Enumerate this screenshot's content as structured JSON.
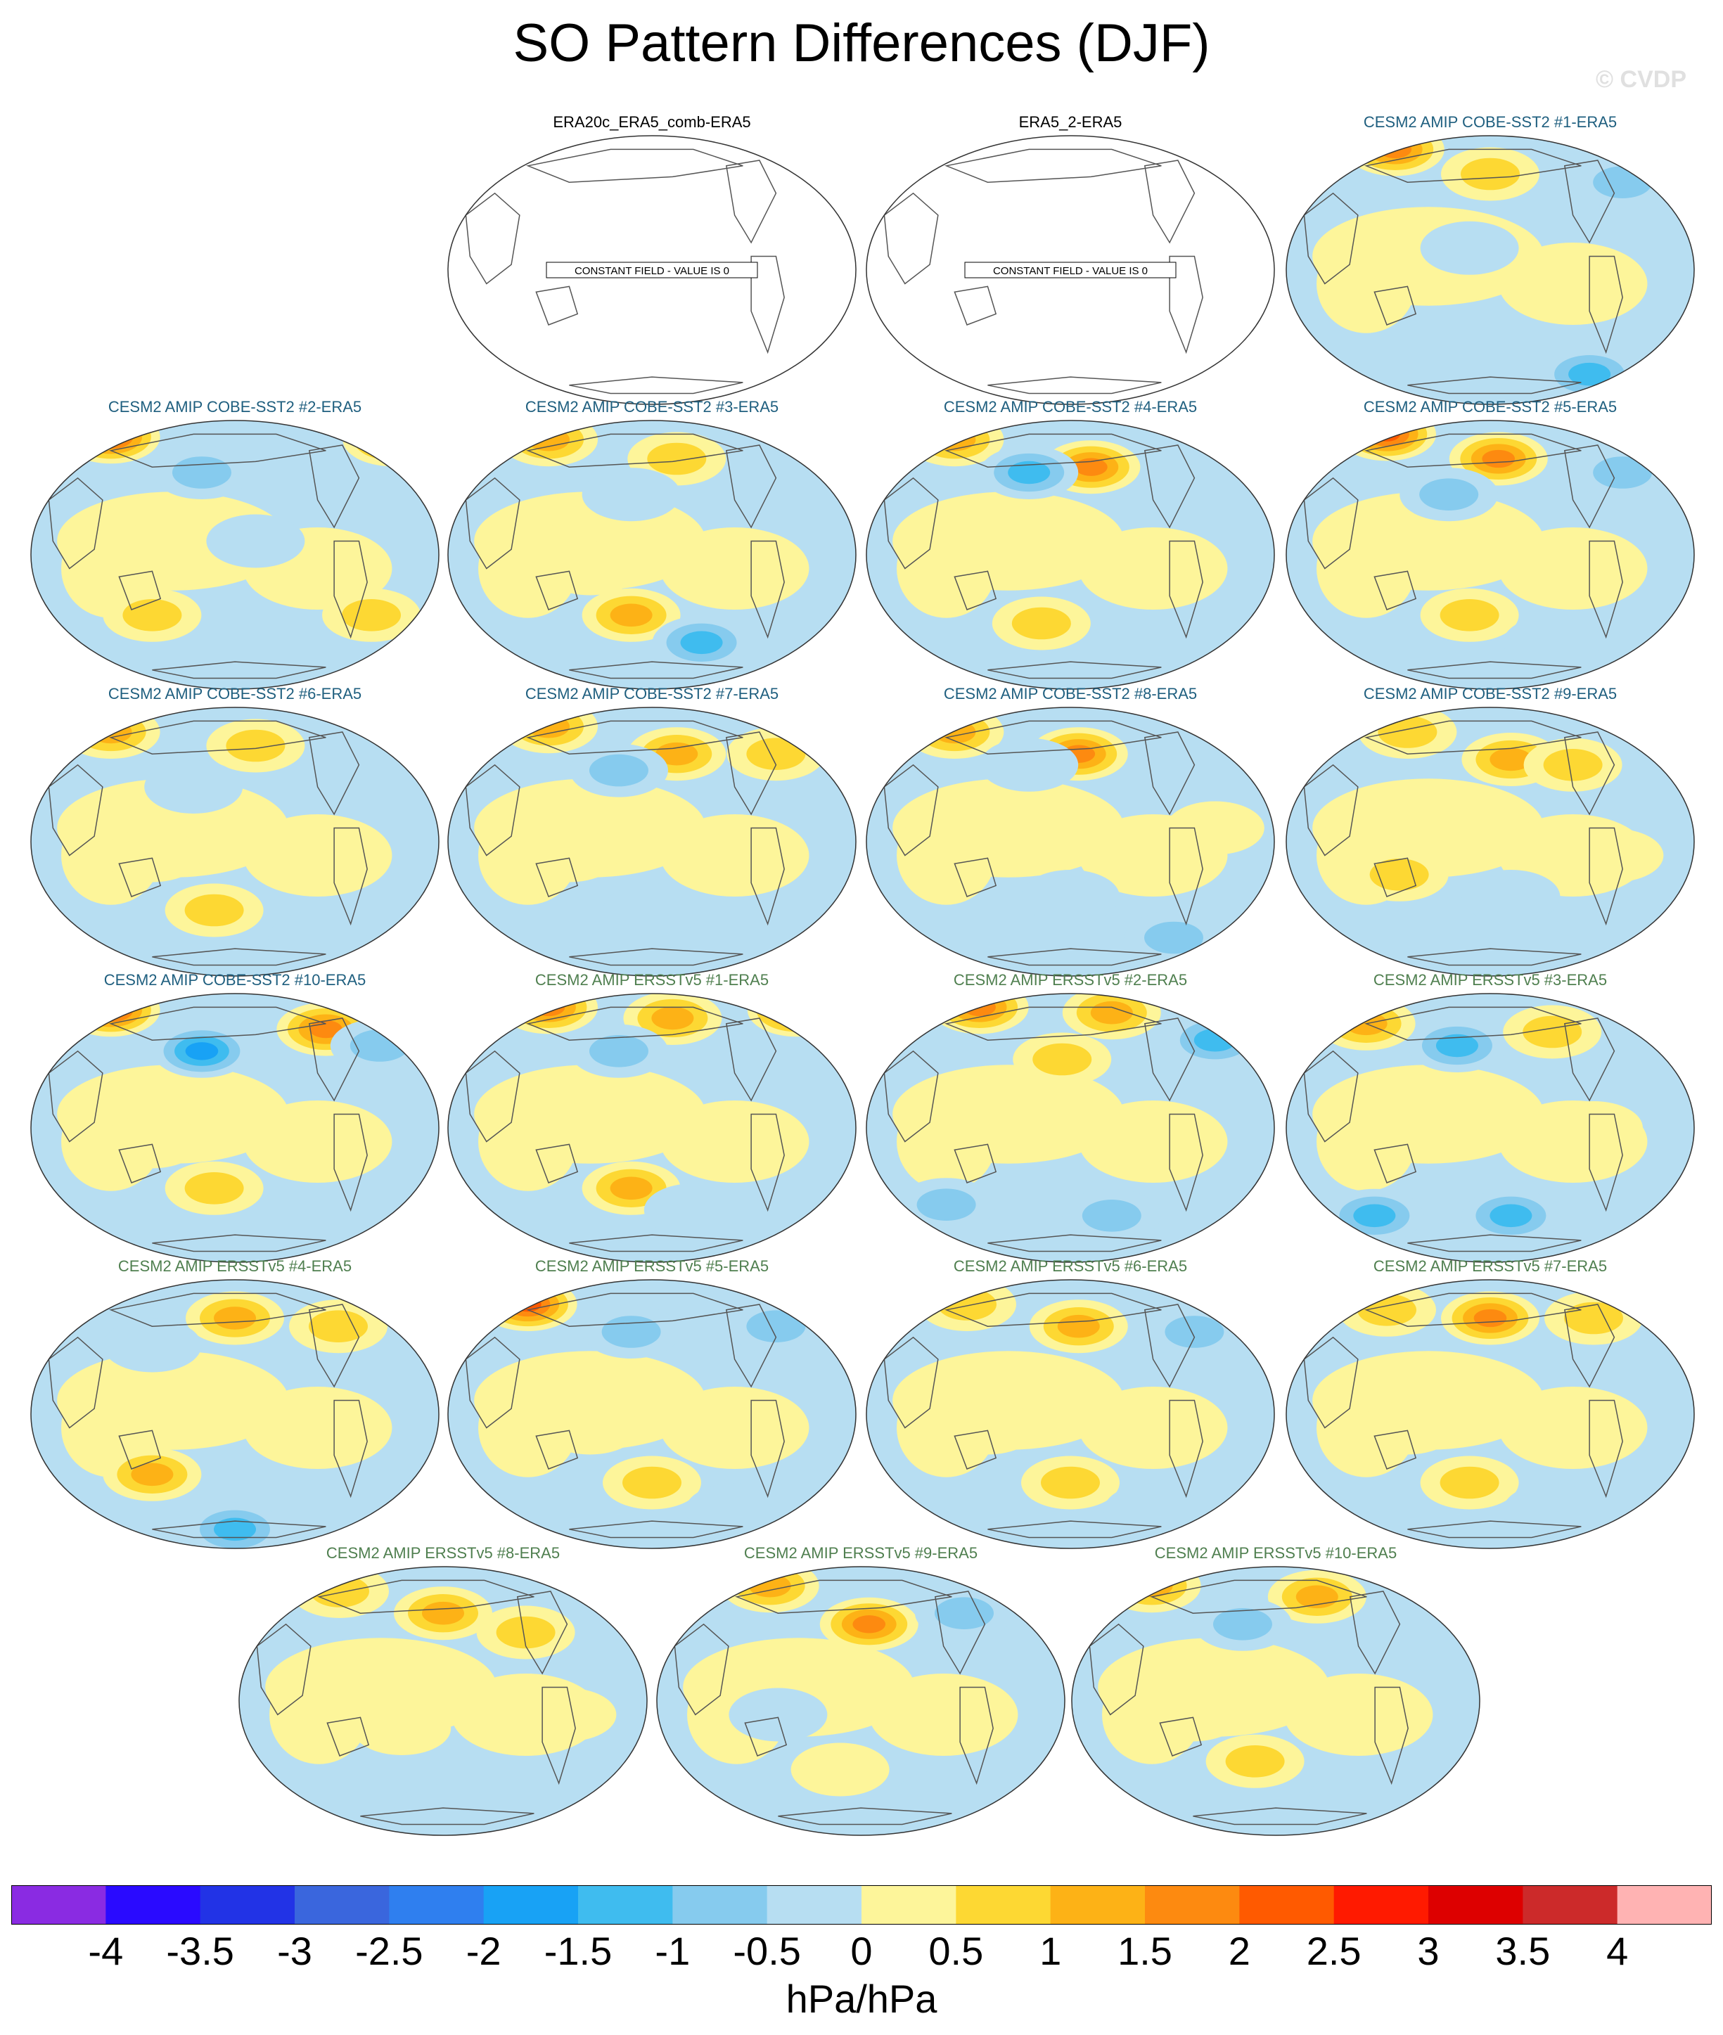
{
  "title": "SO Pattern Differences (DJF)",
  "watermark": "© CVDP",
  "colors": {
    "obs_title": "#000000",
    "cobe_title": "#1f5f7f",
    "ersst_title": "#4f7f4f",
    "ocean_base": "#b7def2",
    "land_line": "#555555"
  },
  "chart_data": {
    "type": "heatmap",
    "title": "SO Pattern Differences (DJF)",
    "units": "hPa/hPa",
    "colorbar": {
      "levels": [
        "-4",
        "-3.5",
        "-3",
        "-2.5",
        "-2",
        "-1.5",
        "-1",
        "-0.5",
        "0",
        "0.5",
        "1",
        "1.5",
        "2",
        "2.5",
        "3",
        "3.5",
        "4"
      ],
      "colors": [
        "#8a2be2",
        "#2a0aff",
        "#2233e6",
        "#3a66dd",
        "#2f7fef",
        "#18a2f5",
        "#3fbcef",
        "#86cbee",
        "#b7def2",
        "#fdf59a",
        "#fdd833",
        "#fdb216",
        "#fd8a10",
        "#ff5a00",
        "#ff1a00",
        "#dd0000",
        "#cc2a2a",
        "#ffb3b3"
      ]
    },
    "panels": [
      {
        "label": "ERA20c_ERA5_comb-ERA5",
        "group": "obs",
        "constant": true,
        "note": "CONSTANT FIELD - VALUE IS 0"
      },
      {
        "label": "ERA5_2-ERA5",
        "group": "obs",
        "constant": true,
        "note": "CONSTANT FIELD - VALUE IS 0"
      },
      {
        "label": "CESM2 AMIP COBE-SST2 #1-ERA5",
        "group": "cobe",
        "constant": false,
        "blobs": [
          [
            0.27,
            0.06,
            2
          ],
          [
            0.5,
            0.15,
            1
          ],
          [
            0.82,
            0.18,
            -1
          ],
          [
            0.45,
            0.42,
            -0.5
          ],
          [
            0.74,
            0.88,
            -1.5
          ],
          [
            0.2,
            0.55,
            0.5
          ]
        ]
      },
      {
        "label": "CESM2 AMIP COBE-SST2 #2-ERA5",
        "group": "cobe",
        "constant": false,
        "blobs": [
          [
            0.2,
            0.07,
            2.5
          ],
          [
            0.88,
            0.08,
            2
          ],
          [
            0.42,
            0.2,
            -1
          ],
          [
            0.3,
            0.72,
            1
          ],
          [
            0.83,
            0.72,
            1
          ],
          [
            0.55,
            0.45,
            -0.5
          ]
        ]
      },
      {
        "label": "CESM2 AMIP COBE-SST2 #3-ERA5",
        "group": "cobe",
        "constant": false,
        "blobs": [
          [
            0.25,
            0.08,
            1.5
          ],
          [
            0.56,
            0.15,
            1
          ],
          [
            0.45,
            0.28,
            -0.5
          ],
          [
            0.45,
            0.72,
            1.5
          ],
          [
            0.62,
            0.82,
            -1.5
          ],
          [
            0.35,
            0.55,
            0.5
          ]
        ]
      },
      {
        "label": "CESM2 AMIP COBE-SST2 #4-ERA5",
        "group": "cobe",
        "constant": false,
        "blobs": [
          [
            0.22,
            0.08,
            1.5
          ],
          [
            0.55,
            0.18,
            2
          ],
          [
            0.4,
            0.2,
            -1.5
          ],
          [
            0.58,
            0.88,
            -0.5
          ],
          [
            0.43,
            0.75,
            1
          ],
          [
            0.75,
            0.55,
            0.5
          ]
        ]
      },
      {
        "label": "CESM2 AMIP COBE-SST2 #5-ERA5",
        "group": "cobe",
        "constant": false,
        "blobs": [
          [
            0.25,
            0.06,
            2.5
          ],
          [
            0.52,
            0.15,
            2
          ],
          [
            0.82,
            0.2,
            -1
          ],
          [
            0.4,
            0.28,
            -1
          ],
          [
            0.45,
            0.72,
            1
          ],
          [
            0.65,
            0.82,
            -0.5
          ]
        ]
      },
      {
        "label": "CESM2 AMIP COBE-SST2 #6-ERA5",
        "group": "cobe",
        "constant": false,
        "blobs": [
          [
            0.2,
            0.1,
            1.5
          ],
          [
            0.55,
            0.15,
            1
          ],
          [
            0.4,
            0.3,
            -0.5
          ],
          [
            0.45,
            0.75,
            1
          ],
          [
            0.7,
            0.85,
            -0.5
          ],
          [
            0.3,
            0.55,
            0.5
          ]
        ]
      },
      {
        "label": "CESM2 AMIP COBE-SST2 #7-ERA5",
        "group": "cobe",
        "constant": false,
        "blobs": [
          [
            0.25,
            0.08,
            1.5
          ],
          [
            0.56,
            0.18,
            1.5
          ],
          [
            0.42,
            0.24,
            -1
          ],
          [
            0.8,
            0.18,
            1
          ],
          [
            0.5,
            0.75,
            -0.5
          ],
          [
            0.3,
            0.55,
            0.5
          ]
        ]
      },
      {
        "label": "CESM2 AMIP COBE-SST2 #8-ERA5",
        "group": "cobe",
        "constant": false,
        "blobs": [
          [
            0.22,
            0.1,
            1.5
          ],
          [
            0.52,
            0.18,
            2
          ],
          [
            0.4,
            0.22,
            -0.5
          ],
          [
            0.75,
            0.85,
            -1
          ],
          [
            0.5,
            0.7,
            -0.5
          ],
          [
            0.85,
            0.45,
            0.5
          ]
        ]
      },
      {
        "label": "CESM2 AMIP COBE-SST2 #9-ERA5",
        "group": "cobe",
        "constant": false,
        "blobs": [
          [
            0.3,
            0.1,
            1
          ],
          [
            0.55,
            0.2,
            1.5
          ],
          [
            0.7,
            0.22,
            1
          ],
          [
            0.28,
            0.62,
            1
          ],
          [
            0.55,
            0.7,
            -0.5
          ],
          [
            0.8,
            0.55,
            0.5
          ]
        ]
      },
      {
        "label": "CESM2 AMIP COBE-SST2 #10-ERA5",
        "group": "cobe",
        "constant": false,
        "blobs": [
          [
            0.2,
            0.07,
            2.5
          ],
          [
            0.42,
            0.22,
            -2
          ],
          [
            0.72,
            0.14,
            2
          ],
          [
            0.85,
            0.2,
            -1
          ],
          [
            0.45,
            0.72,
            1
          ],
          [
            0.3,
            0.55,
            0.5
          ]
        ]
      },
      {
        "label": "CESM2 AMIP ERSSTv5 #1-ERA5",
        "group": "ersst",
        "constant": false,
        "blobs": [
          [
            0.25,
            0.06,
            2
          ],
          [
            0.55,
            0.1,
            1.5
          ],
          [
            0.85,
            0.07,
            2.5
          ],
          [
            0.42,
            0.22,
            -1
          ],
          [
            0.45,
            0.72,
            1.5
          ],
          [
            0.6,
            0.8,
            -0.5
          ]
        ]
      },
      {
        "label": "CESM2 AMIP ERSSTv5 #2-ERA5",
        "group": "ersst",
        "constant": false,
        "blobs": [
          [
            0.28,
            0.06,
            2
          ],
          [
            0.6,
            0.08,
            1.5
          ],
          [
            0.85,
            0.18,
            -1.5
          ],
          [
            0.48,
            0.25,
            1
          ],
          [
            0.2,
            0.78,
            -1
          ],
          [
            0.6,
            0.82,
            -1
          ]
        ]
      },
      {
        "label": "CESM2 AMIP ERSSTv5 #3-ERA5",
        "group": "ersst",
        "constant": false,
        "blobs": [
          [
            0.2,
            0.12,
            1.5
          ],
          [
            0.42,
            0.2,
            -1.5
          ],
          [
            0.65,
            0.15,
            1
          ],
          [
            0.22,
            0.82,
            -1.5
          ],
          [
            0.55,
            0.82,
            -1.5
          ],
          [
            0.75,
            0.5,
            0.5
          ]
        ]
      },
      {
        "label": "CESM2 AMIP ERSSTv5 #4-ERA5",
        "group": "ersst",
        "constant": false,
        "blobs": [
          [
            0.5,
            0.15,
            1.5
          ],
          [
            0.75,
            0.18,
            1
          ],
          [
            0.3,
            0.25,
            -0.5
          ],
          [
            0.3,
            0.72,
            1.5
          ],
          [
            0.5,
            0.92,
            -1.5
          ],
          [
            0.25,
            0.55,
            0.5
          ]
        ]
      },
      {
        "label": "CESM2 AMIP ERSSTv5 #5-ERA5",
        "group": "ersst",
        "constant": false,
        "blobs": [
          [
            0.2,
            0.1,
            2.5
          ],
          [
            0.45,
            0.2,
            -1
          ],
          [
            0.8,
            0.18,
            -1
          ],
          [
            0.5,
            0.75,
            1
          ],
          [
            0.35,
            0.55,
            0.5
          ],
          [
            0.7,
            0.85,
            -0.5
          ]
        ]
      },
      {
        "label": "CESM2 AMIP ERSSTv5 #6-ERA5",
        "group": "ersst",
        "constant": false,
        "blobs": [
          [
            0.25,
            0.1,
            1
          ],
          [
            0.52,
            0.18,
            1.5
          ],
          [
            0.8,
            0.2,
            -1
          ],
          [
            0.5,
            0.75,
            1
          ],
          [
            0.3,
            0.55,
            0.5
          ],
          [
            0.7,
            0.85,
            -0.5
          ]
        ]
      },
      {
        "label": "CESM2 AMIP ERSSTv5 #7-ERA5",
        "group": "ersst",
        "constant": false,
        "blobs": [
          [
            0.5,
            0.15,
            2
          ],
          [
            0.25,
            0.12,
            1
          ],
          [
            0.75,
            0.15,
            1
          ],
          [
            0.45,
            0.75,
            1
          ],
          [
            0.3,
            0.55,
            0.5
          ],
          [
            0.65,
            0.85,
            -0.5
          ]
        ]
      },
      {
        "label": "CESM2 AMIP ERSSTv5 #8-ERA5",
        "group": "ersst",
        "constant": false,
        "blobs": [
          [
            0.25,
            0.1,
            1
          ],
          [
            0.5,
            0.18,
            1.5
          ],
          [
            0.7,
            0.25,
            1
          ],
          [
            0.4,
            0.6,
            0.5
          ],
          [
            0.5,
            0.9,
            -0.5
          ],
          [
            0.8,
            0.55,
            0.5
          ]
        ]
      },
      {
        "label": "CESM2 AMIP ERSSTv5 #9-ERA5",
        "group": "ersst",
        "constant": false,
        "blobs": [
          [
            0.28,
            0.08,
            1.5
          ],
          [
            0.52,
            0.22,
            2
          ],
          [
            0.75,
            0.18,
            -1
          ],
          [
            0.45,
            0.75,
            0.5
          ],
          [
            0.3,
            0.55,
            -0.5
          ],
          [
            0.7,
            0.85,
            -0.5
          ]
        ]
      },
      {
        "label": "CESM2 AMIP ERSSTv5 #10-ERA5",
        "group": "ersst",
        "constant": false,
        "blobs": [
          [
            0.2,
            0.08,
            1.5
          ],
          [
            0.6,
            0.12,
            1.5
          ],
          [
            0.42,
            0.22,
            -1
          ],
          [
            0.45,
            0.72,
            1
          ],
          [
            0.3,
            0.55,
            0.5
          ],
          [
            0.7,
            0.85,
            -0.5
          ]
        ]
      }
    ]
  }
}
